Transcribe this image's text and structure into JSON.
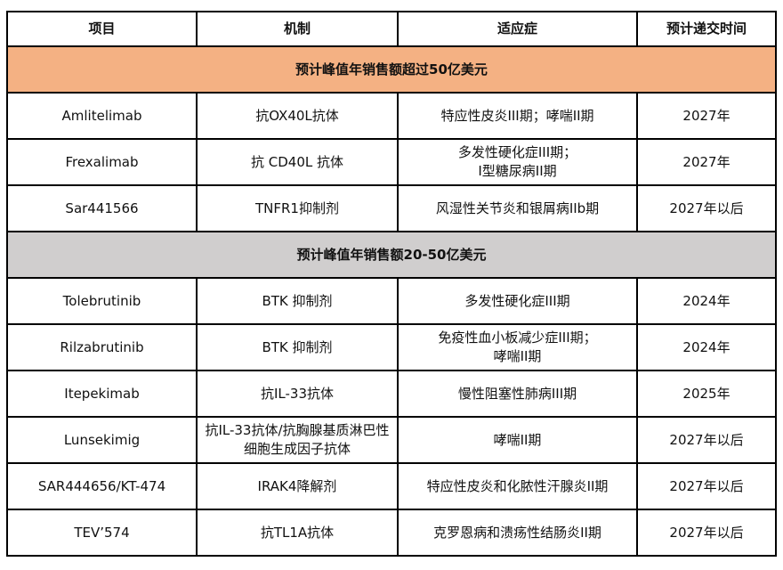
{
  "headers": [
    "项目",
    "机制",
    "适应症",
    "预计递交时间"
  ],
  "colors": {
    "group_high": "#f4b183",
    "group_mid": "#d0cece"
  },
  "groups": [
    {
      "title": "预计峰值年销售额超过50亿美元",
      "rows": [
        [
          "Amlitelimab",
          "抗OX40L抗体",
          "特应性皮炎III期；哮喘II期",
          "2027年"
        ],
        [
          "Frexalimab",
          "抗 CD40L 抗体",
          "多发性硬化症III期；\nI型糖尿病II期",
          "2027年"
        ],
        [
          "Sar441566",
          "TNFR1抑制剂",
          "风湿性关节炎和银屑病IIb期",
          "2027年以后"
        ]
      ]
    },
    {
      "title": "预计峰值年销售额20-50亿美元",
      "rows": [
        [
          "Tolebrutinib",
          "BTK 抑制剂",
          "多发性硬化症III期",
          "2024年"
        ],
        [
          "Rilzabrutinib",
          "BTK 抑制剂",
          "免疫性血小板减少症III期；\n哮喘II期",
          "2024年"
        ],
        [
          "Itepekimab",
          "抗IL-33抗体",
          "慢性阻塞性肺病III期",
          "2025年"
        ],
        [
          "Lunsekimig",
          "抗IL-33抗体/抗胸腺基质淋巴性细胞生成因子抗体",
          "哮喘II期",
          "2027年以后"
        ],
        [
          "SAR444656/KT-474",
          "IRAK4降解剂",
          "特应性皮炎和化脓性汗腺炎II期",
          "2027年以后"
        ],
        [
          "TEV’574",
          "抗TL1A抗体",
          "克罗恩病和溃疡性结肠炎II期",
          "2027年以后"
        ]
      ]
    }
  ]
}
